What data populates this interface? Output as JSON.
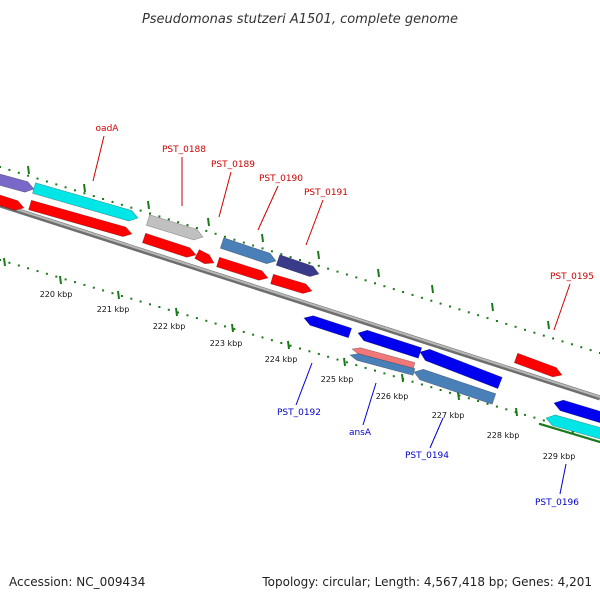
{
  "title": "Pseudomonas stutzeri A1501, complete genome",
  "footer": {
    "accession": "Accession: NC_009434",
    "summary": "Topology: circular; Length: 4,567,418 bp; Genes: 4,201"
  },
  "colors": {
    "backbone": "#8a8a8a",
    "tick": "#1a7a1a",
    "forward_label": "#cc0000",
    "reverse_label": "#0000cc",
    "red": "#ff0000",
    "blue": "#0000ee",
    "cyan": "#00e5e5",
    "steel": "#4a80b8",
    "grey": "#c0c0c0",
    "purple": "#7a68c8",
    "dark_purple": "#3a3a8a",
    "pink": "#f07878"
  },
  "scale_labels": [
    "220 kbp",
    "221 kbp",
    "222 kbp",
    "223 kbp",
    "224 kbp",
    "225 kbp",
    "226 kbp",
    "227 kbp",
    "228 kbp",
    "229 kbp"
  ],
  "gene_labels": {
    "forward": [
      "oadA",
      "PST_0188",
      "PST_0189",
      "PST_0190",
      "PST_0191",
      "PST_0195"
    ],
    "reverse": [
      "PST_0192",
      "ansA",
      "PST_0194",
      "PST_0196"
    ]
  },
  "features": [
    {
      "name": "feature-purple-upper",
      "color": "purple",
      "strand": "forward"
    },
    {
      "name": "feature-oadA",
      "color": "cyan",
      "strand": "forward"
    },
    {
      "name": "feature-red-left-edge",
      "color": "red",
      "strand": "forward"
    },
    {
      "name": "feature-red-long",
      "color": "red",
      "strand": "forward"
    },
    {
      "name": "feature-PST_0188",
      "color": "grey",
      "strand": "forward"
    },
    {
      "name": "feature-red-0188",
      "color": "red",
      "strand": "forward"
    },
    {
      "name": "feature-red-0189-small",
      "color": "red",
      "strand": "forward"
    },
    {
      "name": "feature-PST_0190",
      "color": "steel",
      "strand": "forward"
    },
    {
      "name": "feature-red-0190",
      "color": "red",
      "strand": "forward"
    },
    {
      "name": "feature-PST_0191",
      "color": "dark_purple",
      "strand": "forward"
    },
    {
      "name": "feature-red-0191",
      "color": "red",
      "strand": "forward"
    },
    {
      "name": "feature-PST_0195",
      "color": "red",
      "strand": "forward"
    },
    {
      "name": "feature-PST_0192",
      "color": "blue",
      "strand": "reverse"
    },
    {
      "name": "feature-blue-ansA-upper",
      "color": "blue",
      "strand": "reverse"
    },
    {
      "name": "feature-ansA",
      "color": "pink",
      "strand": "reverse"
    },
    {
      "name": "feature-ansA-steel",
      "color": "steel",
      "strand": "reverse"
    },
    {
      "name": "feature-blue-0194",
      "color": "blue",
      "strand": "reverse"
    },
    {
      "name": "feature-PST_0194",
      "color": "steel",
      "strand": "reverse"
    },
    {
      "name": "feature-PST_0196",
      "color": "blue",
      "strand": "reverse"
    },
    {
      "name": "feature-cyan-0196",
      "color": "cyan",
      "strand": "reverse"
    }
  ]
}
